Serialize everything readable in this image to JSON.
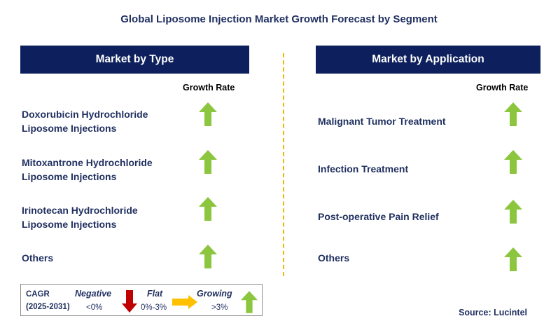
{
  "title": "Global Liposome Injection Market Growth Forecast by Segment",
  "left_panel": {
    "header": "Market by Type",
    "growth_label": "Growth Rate",
    "items": [
      {
        "line1": "Doxorubicin Hydrochloride",
        "line2": "Liposome Injections",
        "trend": "growing"
      },
      {
        "line1": "Mitoxantrone Hydrochloride",
        "line2": "Liposome Injections",
        "trend": "growing"
      },
      {
        "line1": "Irinotecan Hydrochloride",
        "line2": "Liposome Injections",
        "trend": "growing"
      },
      {
        "line1": "Others",
        "line2": "",
        "trend": "growing"
      }
    ]
  },
  "right_panel": {
    "header": "Market by Application",
    "growth_label": "Growth Rate",
    "items": [
      {
        "label": "Malignant Tumor Treatment",
        "trend": "growing"
      },
      {
        "label": "Infection Treatment",
        "trend": "growing"
      },
      {
        "label": "Post-operative Pain Relief",
        "trend": "growing"
      },
      {
        "label": "Others",
        "trend": "growing"
      }
    ]
  },
  "legend": {
    "cagr_label": "CAGR",
    "period": "(2025-2031)",
    "negative_label": "Negative",
    "negative_range": "<0%",
    "flat_label": "Flat",
    "flat_range": "0%-3%",
    "growing_label": "Growing",
    "growing_range": ">3%"
  },
  "source": "Source: Lucintel",
  "colors": {
    "header_bg": "#0d1f5c",
    "text": "#1f2f5f",
    "arrow_up": "#8cc63f",
    "arrow_down": "#c00000",
    "arrow_flat": "#ffc000",
    "divider": "#f0b800"
  }
}
